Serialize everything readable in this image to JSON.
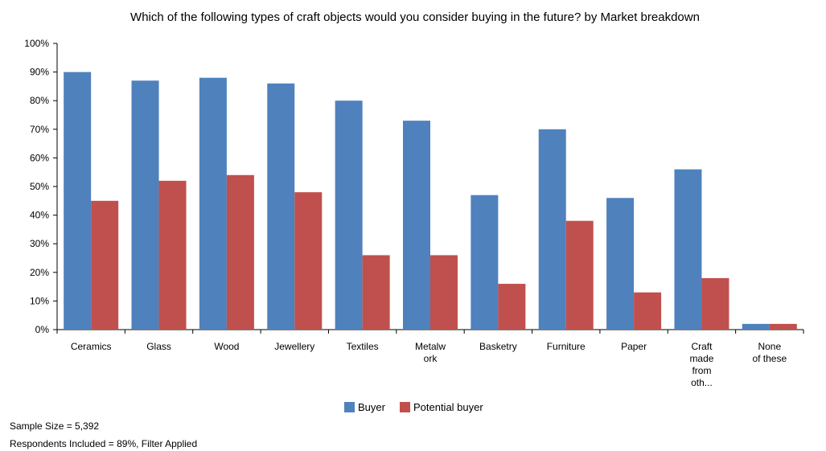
{
  "chart_data": {
    "type": "bar",
    "title": "Which of the following types of craft objects would you consider buying in the future? by Market breakdown",
    "categories": [
      [
        "Ceramics"
      ],
      [
        "Glass"
      ],
      [
        "Wood"
      ],
      [
        "Jewellery"
      ],
      [
        "Textiles"
      ],
      [
        "Metalw",
        "ork"
      ],
      [
        "Basketry"
      ],
      [
        "Furniture"
      ],
      [
        "Paper"
      ],
      [
        "Craft",
        "made",
        "from",
        "oth..."
      ],
      [
        "None",
        "of these"
      ]
    ],
    "series": [
      {
        "name": "Buyer",
        "color": "#4f81bd",
        "values": [
          90,
          87,
          88,
          86,
          80,
          73,
          47,
          70,
          46,
          56,
          2
        ]
      },
      {
        "name": "Potential buyer",
        "color": "#c0504d",
        "values": [
          45,
          52,
          54,
          48,
          26,
          26,
          16,
          38,
          13,
          18,
          2
        ]
      }
    ],
    "ylim": [
      0,
      100
    ],
    "yticks": [
      "0%",
      "10%",
      "20%",
      "30%",
      "40%",
      "50%",
      "60%",
      "70%",
      "80%",
      "90%",
      "100%"
    ],
    "legend_position": "bottom",
    "grid": false
  },
  "footnotes": {
    "sample_size": "Sample Size = 5,392",
    "respondents": "Respondents Included = 89%, Filter Applied"
  }
}
